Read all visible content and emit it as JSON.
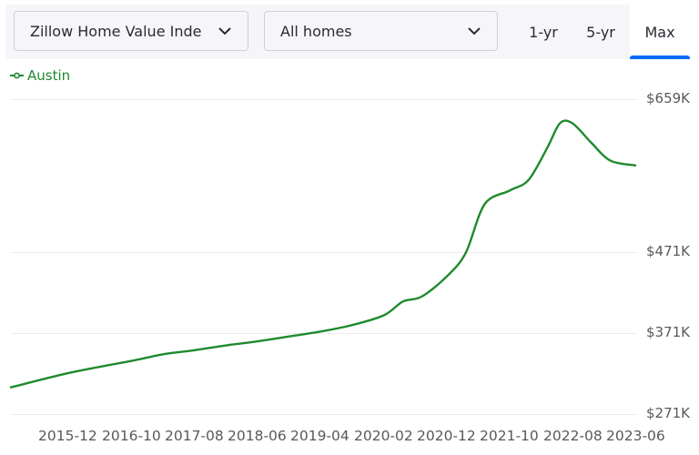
{
  "toolbar": {
    "metric_select": {
      "value": "Zillow Home Value Inde",
      "icon": "chevron-down-icon"
    },
    "home_type_select": {
      "value": "All homes",
      "icon": "chevron-down-icon"
    },
    "range_tabs": [
      {
        "label": "1-yr",
        "active": false
      },
      {
        "label": "5-yr",
        "active": false
      },
      {
        "label": "Max",
        "active": true
      }
    ]
  },
  "legend": {
    "label": "Austin",
    "color": "#1f8a2e",
    "icon": "line-marker-icon"
  },
  "colors": {
    "line": "#1f8a2e",
    "accent": "#006aff",
    "grid": "#ebebeb",
    "axis_text": "#595959"
  },
  "chart_data": {
    "type": "line",
    "title": "",
    "xlabel": "",
    "ylabel": "",
    "y_ticks": [
      "$659K",
      "$471K",
      "$371K",
      "$271K"
    ],
    "x_ticks": [
      "2015-12",
      "2016-10",
      "2017-08",
      "2018-06",
      "2019-04",
      "2020-02",
      "2020-12",
      "2021-10",
      "2022-08",
      "2023-06"
    ],
    "ylim": [
      271000,
      659000
    ],
    "grid": true,
    "legend_position": "top-left",
    "series": [
      {
        "name": "Austin",
        "x": [
          "2015-01",
          "2015-12",
          "2016-10",
          "2017-03",
          "2017-08",
          "2018-01",
          "2018-06",
          "2018-11",
          "2019-04",
          "2019-09",
          "2020-02",
          "2020-05",
          "2020-08",
          "2020-12",
          "2021-03",
          "2021-06",
          "2021-10",
          "2022-01",
          "2022-04",
          "2022-06",
          "2022-08",
          "2022-11",
          "2023-02",
          "2023-06"
        ],
        "values": [
          304000,
          322000,
          337000,
          345000,
          350000,
          356000,
          361000,
          367000,
          373000,
          381000,
          393000,
          410000,
          416000,
          441000,
          470000,
          530000,
          547000,
          560000,
          600000,
          630000,
          630000,
          606000,
          584000,
          578000
        ]
      }
    ]
  }
}
